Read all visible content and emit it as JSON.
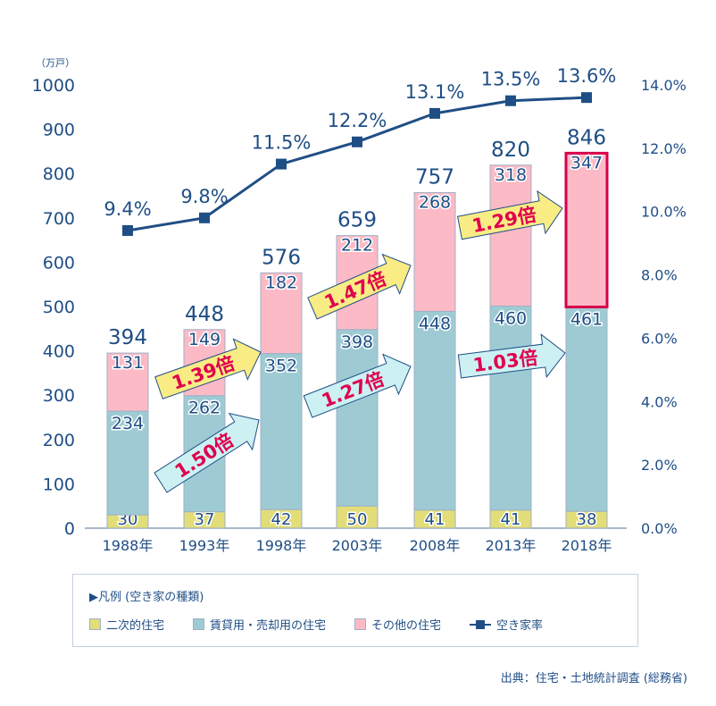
{
  "chart_data": {
    "type": "bar",
    "stacked": true,
    "categories": [
      "1988年",
      "1993年",
      "1998年",
      "2003年",
      "2008年",
      "2013年",
      "2018年"
    ],
    "series": [
      {
        "name": "二次的住宅",
        "values": [
          30,
          37,
          42,
          50,
          41,
          41,
          38
        ],
        "color": "#e2dd78"
      },
      {
        "name": "賃貸用・売却用の住宅",
        "values": [
          234,
          262,
          352,
          398,
          448,
          460,
          461
        ],
        "color": "#9ecbd3"
      },
      {
        "name": "その他の住宅",
        "values": [
          131,
          149,
          182,
          212,
          268,
          318,
          347
        ],
        "color": "#fcbac6"
      }
    ],
    "totals": [
      394,
      448,
      576,
      659,
      757,
      820,
      846
    ],
    "line_series": {
      "name": "空き家率",
      "values": [
        9.4,
        9.8,
        11.5,
        12.2,
        13.1,
        13.5,
        13.6
      ],
      "labels": [
        "9.4%",
        "9.8%",
        "11.5%",
        "12.2%",
        "13.1%",
        "13.5%",
        "13.6%"
      ],
      "color": "#1f4e85"
    },
    "y_left": {
      "unit_label": "（万戸）",
      "range": [
        0,
        1000
      ],
      "ticks": [
        "0",
        "100",
        "200",
        "300",
        "400",
        "500",
        "600",
        "700",
        "800",
        "900",
        "1000"
      ]
    },
    "y_right": {
      "range": [
        0,
        14
      ],
      "ticks": [
        "0.0%",
        "2.0%",
        "4.0%",
        "6.0%",
        "8.0%",
        "10.0%",
        "12.0%",
        "14.0%"
      ]
    },
    "annotations": [
      {
        "label": "1.50倍",
        "kind": "rental",
        "from": "1988年",
        "to": "1993年"
      },
      {
        "label": "1.39倍",
        "kind": "other",
        "from": "1988年",
        "to": "1993年"
      },
      {
        "label": "1.27倍",
        "kind": "rental",
        "from": "1998年",
        "to": "2003年"
      },
      {
        "label": "1.47倍",
        "kind": "other",
        "from": "1998年",
        "to": "2003年"
      },
      {
        "label": "1.03倍",
        "kind": "rental",
        "from": "2008年",
        "to": "2013年"
      },
      {
        "label": "1.29倍",
        "kind": "other",
        "from": "2008年",
        "to": "2013年"
      }
    ],
    "highlight": "2018年",
    "highlight_color": "#d8004c",
    "annotation_text_color": "#e0004f",
    "text_color": "#1f4e85",
    "grid": false
  },
  "legend": {
    "title": "▶凡例 (空き家の種類)",
    "items": [
      "二次的住宅",
      "賃貸用・売却用の住宅",
      "その他の住宅",
      "空き家率"
    ]
  },
  "source": "出典：住宅・土地統計調査 (総務省)"
}
